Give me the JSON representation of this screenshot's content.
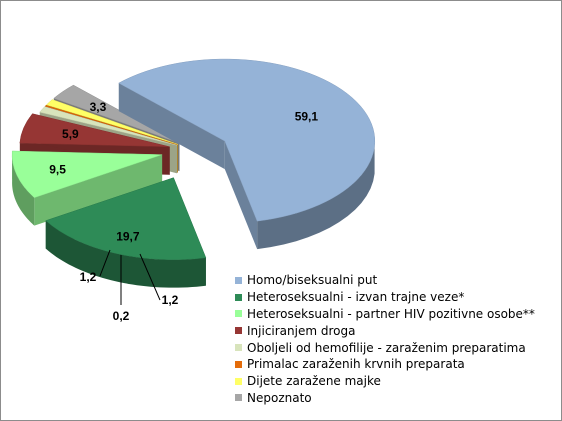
{
  "chart_data": {
    "type": "pie",
    "style": "3d-exploded",
    "legend_position": "bottom-right",
    "title": "",
    "series": [
      {
        "name": "Homo/biseksualni put",
        "value": 59.1,
        "label": "59,1",
        "color": "#95b3d7"
      },
      {
        "name": "Heteroseksualni - izvan trajne veze*",
        "value": 19.7,
        "label": "19,7",
        "color": "#2e8b57"
      },
      {
        "name": "Heteroseksualni - partner HIV pozitivne osobe**",
        "value": 9.5,
        "label": "9,5",
        "color": "#99ff99"
      },
      {
        "name": "Injiciranjem droga",
        "value": 5.9,
        "label": "5,9",
        "color": "#963634"
      },
      {
        "name": "Oboljeli od hemofilije - zaraženim preparatima",
        "value": 1.2,
        "label": "1,2",
        "color": "#d8e4bc"
      },
      {
        "name": "Primalac zaraženih krvnih preparata",
        "value": 0.2,
        "label": "0,2",
        "color": "#e46c0a"
      },
      {
        "name": "Dijete zaražene majke",
        "value": 1.2,
        "label": "1,2",
        "color": "#ffff66"
      },
      {
        "name": "Nepoznato",
        "value": 3.3,
        "label": "3,3",
        "color": "#a6a6a6"
      }
    ]
  }
}
